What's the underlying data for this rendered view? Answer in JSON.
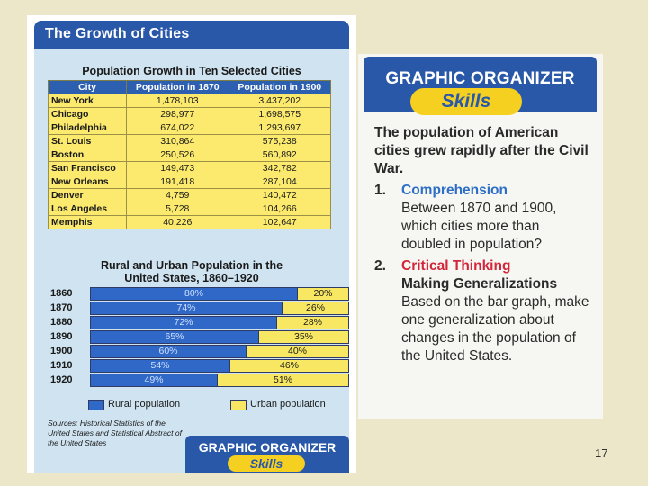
{
  "left_page": {
    "title": "The Growth of Cities",
    "table": {
      "title": "Population Growth in Ten Selected Cities",
      "headers": [
        "City",
        "Population in 1870",
        "Population in 1900"
      ],
      "rows": [
        [
          "New York",
          "1,478,103",
          "3,437,202"
        ],
        [
          "Chicago",
          "298,977",
          "1,698,575"
        ],
        [
          "Philadelphia",
          "674,022",
          "1,293,697"
        ],
        [
          "St. Louis",
          "310,864",
          "575,238"
        ],
        [
          "Boston",
          "250,526",
          "560,892"
        ],
        [
          "San Francisco",
          "149,473",
          "342,782"
        ],
        [
          "New Orleans",
          "191,418",
          "287,104"
        ],
        [
          "Denver",
          "4,759",
          "140,472"
        ],
        [
          "Los Angeles",
          "5,728",
          "104,266"
        ],
        [
          "Memphis",
          "40,226",
          "102,647"
        ]
      ]
    },
    "bar_chart_title_line1": "Rural and Urban Population in the",
    "bar_chart_title_line2": "United States, 1860–1920",
    "legend": {
      "rural": "Rural population",
      "urban": "Urban population"
    },
    "sources": "Sources: Historical Statistics of the United States and Statistical Abstract of the United States",
    "go_title": "GRAPHIC ORGANIZER",
    "go_skills": "Skills"
  },
  "chart_data": {
    "type": "bar",
    "stacked": true,
    "orientation": "horizontal",
    "categories": [
      "1860",
      "1870",
      "1880",
      "1890",
      "1900",
      "1910",
      "1920"
    ],
    "series": [
      {
        "name": "Rural population",
        "values": [
          80,
          74,
          72,
          65,
          60,
          54,
          49
        ],
        "labels": [
          "80%",
          "74%",
          "72%",
          "65%",
          "60%",
          "54%",
          "49%"
        ]
      },
      {
        "name": "Urban population",
        "values": [
          20,
          26,
          28,
          35,
          40,
          46,
          51
        ],
        "labels": [
          "20%",
          "26%",
          "28%",
          "35%",
          "40%",
          "46%",
          "51%"
        ]
      }
    ],
    "colors": {
      "rural": "#2f68c6",
      "urban": "#f8e762"
    }
  },
  "right_page": {
    "header_title": "GRAPHIC ORGANIZER",
    "header_skills": "Skills",
    "intro": "The population of American cities grew rapidly after the Civil War.",
    "q1_num": "1.",
    "q1_head": "Comprehension",
    "q1_text": "Between 1870 and 1900, which cities more than doubled in population?",
    "q2_num": "2.",
    "q2_head": "Critical Thinking",
    "q2_sub": "Making Generalizations",
    "q2_text": "Based on the bar graph, make one generalization about changes in the population of the United States."
  },
  "page_number": "17"
}
